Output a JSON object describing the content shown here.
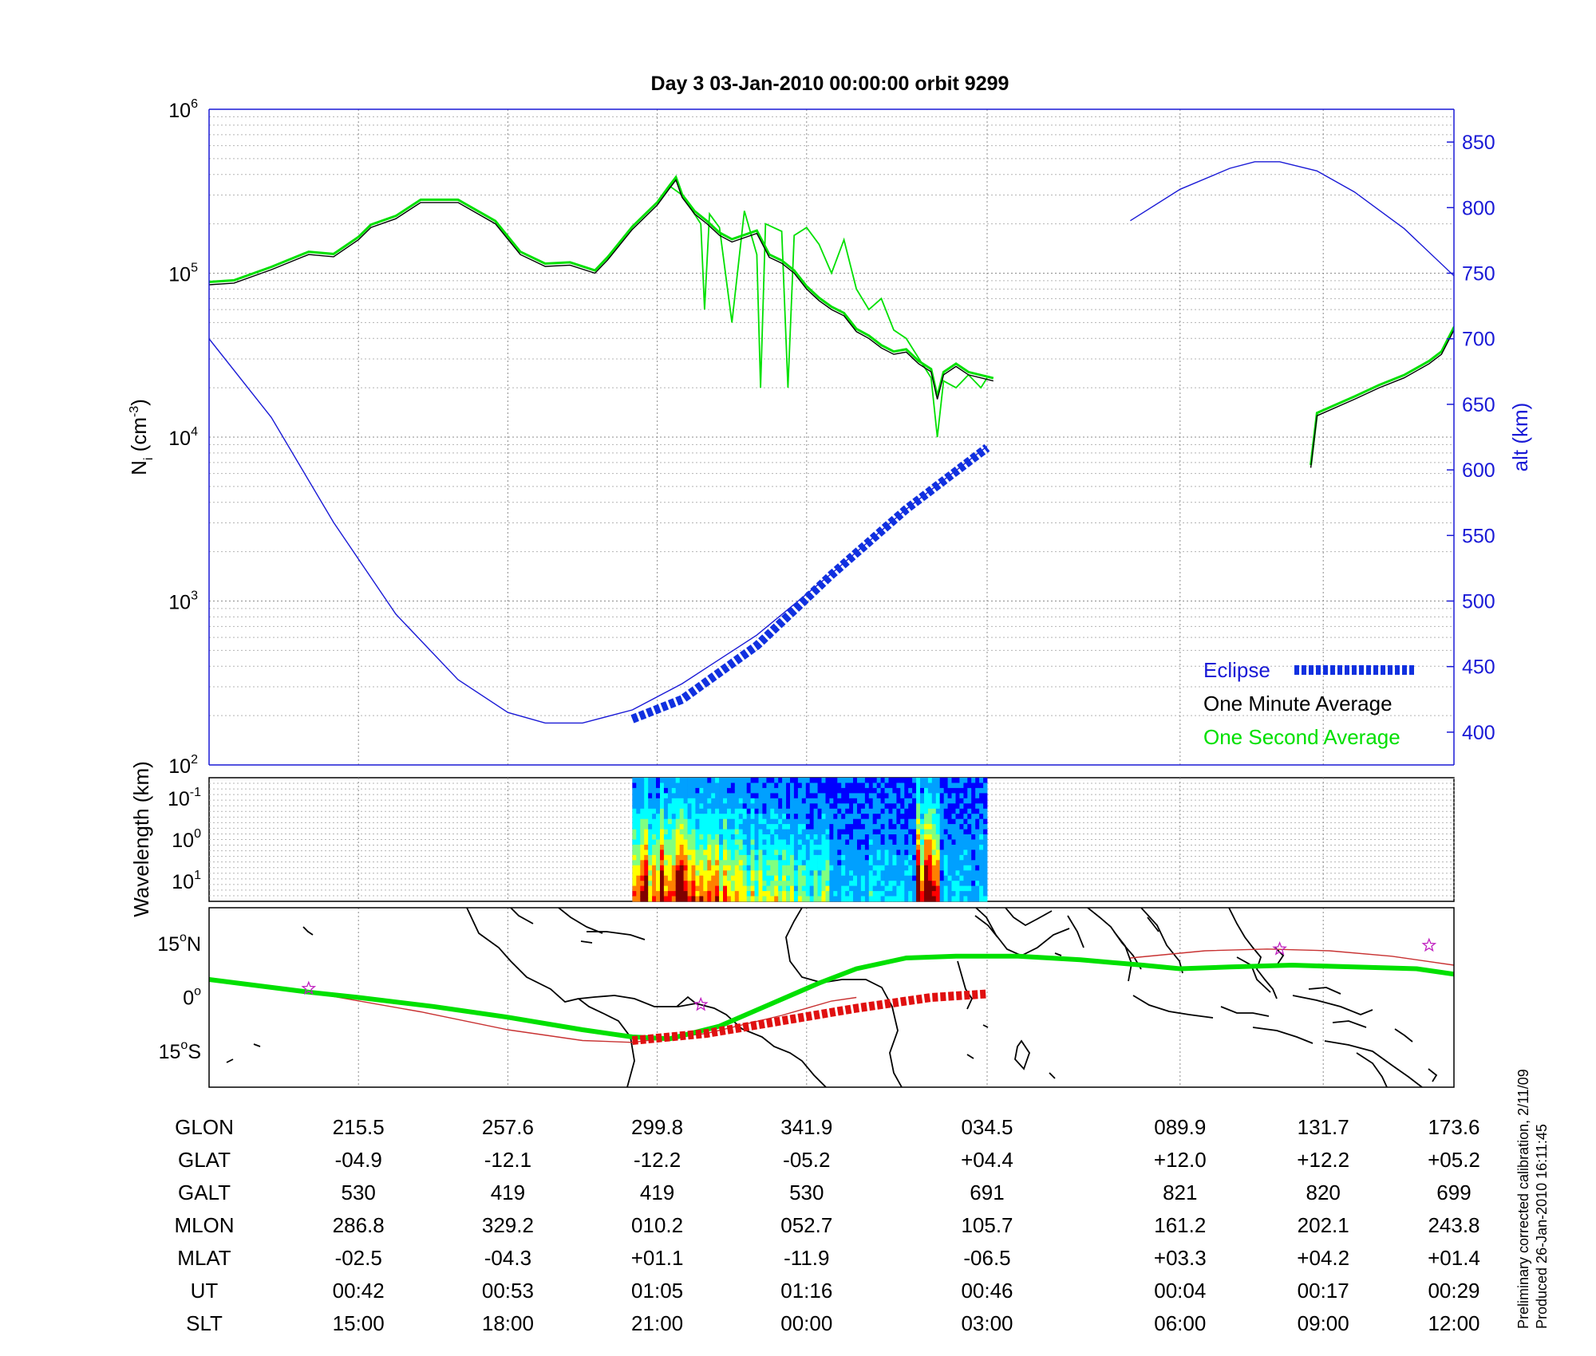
{
  "title": "Day 3  03-Jan-2010 00:00:00   orbit 9299",
  "colors": {
    "one_second": "#00e000",
    "one_minute": "#000000",
    "altitude": "#1a1ad6",
    "eclipse_top": "#1030e0",
    "eclipse_map": "#e01010",
    "orbit_track": "#c83232",
    "star": "#c020c0"
  },
  "chart_data": [
    {
      "type": "line",
      "panel": "ion-density",
      "ylabel_base": "N",
      "ylabel_sub": "i",
      "ylabel_unit": " (cm",
      "ylabel_exp": "-3",
      "ylabel_close": ")",
      "y_scale": "log",
      "ylim": [
        100,
        1000000
      ],
      "y_ticks": [
        {
          "base": "10",
          "exp": "2",
          "value": 100
        },
        {
          "base": "10",
          "exp": "3",
          "value": 1000
        },
        {
          "base": "10",
          "exp": "4",
          "value": 10000
        },
        {
          "base": "10",
          "exp": "5",
          "value": 100000
        },
        {
          "base": "10",
          "exp": "6",
          "value": 1000000
        }
      ],
      "y2label": "alt (km)",
      "y2lim": [
        375,
        875
      ],
      "y2_ticks": [
        "400",
        "450",
        "500",
        "550",
        "600",
        "650",
        "700",
        "750",
        "800",
        "850"
      ],
      "x_positions": [
        0.12,
        0.24,
        0.36,
        0.48,
        0.625,
        0.78,
        0.895,
        1.0
      ],
      "grid": true,
      "legend": {
        "placement": "bottom-right",
        "entries": [
          {
            "label": "Eclipse",
            "style": "eclipse"
          },
          {
            "label": "One Minute Average",
            "style": "minute"
          },
          {
            "label": "One Second Average",
            "style": "second"
          }
        ]
      },
      "series": [
        {
          "name": "One Minute Average",
          "unit": "cm^-3",
          "segments": [
            [
              [
                0.0,
                85000
              ],
              [
                0.02,
                87000
              ],
              [
                0.05,
                105000
              ],
              [
                0.08,
                130000
              ],
              [
                0.1,
                126000
              ],
              [
                0.12,
                160000
              ],
              [
                0.13,
                190000
              ],
              [
                0.15,
                215000
              ],
              [
                0.17,
                270000
              ],
              [
                0.2,
                270000
              ],
              [
                0.23,
                200000
              ],
              [
                0.25,
                130000
              ],
              [
                0.27,
                110000
              ],
              [
                0.29,
                112000
              ],
              [
                0.31,
                100000
              ],
              [
                0.32,
                120000
              ],
              [
                0.34,
                185000
              ],
              [
                0.36,
                260000
              ],
              [
                0.37,
                330000
              ],
              [
                0.375,
                370000
              ],
              [
                0.38,
                290000
              ],
              [
                0.39,
                230000
              ],
              [
                0.4,
                200000
              ],
              [
                0.41,
                170000
              ],
              [
                0.42,
                155000
              ],
              [
                0.44,
                175000
              ],
              [
                0.45,
                125000
              ],
              [
                0.46,
                115000
              ],
              [
                0.47,
                100000
              ],
              [
                0.48,
                80000
              ],
              [
                0.49,
                68000
              ],
              [
                0.5,
                60000
              ],
              [
                0.51,
                55000
              ],
              [
                0.52,
                44000
              ],
              [
                0.53,
                40000
              ],
              [
                0.54,
                35000
              ],
              [
                0.55,
                32000
              ],
              [
                0.56,
                33000
              ],
              [
                0.57,
                28000
              ],
              [
                0.58,
                25000
              ],
              [
                0.585,
                17000
              ],
              [
                0.59,
                24000
              ],
              [
                0.6,
                27000
              ],
              [
                0.61,
                24000
              ],
              [
                0.63,
                22000
              ]
            ],
            [
              [
                0.885,
                6500
              ],
              [
                0.89,
                13500
              ],
              [
                0.92,
                17000
              ],
              [
                0.94,
                20000
              ],
              [
                0.96,
                23000
              ],
              [
                0.98,
                28000
              ],
              [
                0.99,
                32000
              ],
              [
                1.0,
                45000
              ],
              [
                1.02,
                60000
              ],
              [
                1.04,
                68000
              ],
              [
                1.05,
                75000
              ]
            ]
          ]
        },
        {
          "name": "One Second Average",
          "unit": "cm^-3",
          "segments": [
            [
              [
                0.37,
                340000
              ],
              [
                0.38,
                300000
              ],
              [
                0.395,
                200000
              ],
              [
                0.398,
                60000
              ],
              [
                0.402,
                230000
              ],
              [
                0.41,
                190000
              ],
              [
                0.42,
                50000
              ],
              [
                0.43,
                240000
              ],
              [
                0.44,
                130000
              ],
              [
                0.443,
                20000
              ],
              [
                0.447,
                200000
              ],
              [
                0.46,
                180000
              ],
              [
                0.465,
                20000
              ],
              [
                0.47,
                170000
              ],
              [
                0.48,
                190000
              ],
              [
                0.49,
                150000
              ],
              [
                0.5,
                100000
              ],
              [
                0.51,
                160000
              ],
              [
                0.52,
                80000
              ],
              [
                0.53,
                60000
              ],
              [
                0.54,
                70000
              ],
              [
                0.55,
                45000
              ],
              [
                0.56,
                40000
              ],
              [
                0.58,
                23000
              ],
              [
                0.585,
                10000
              ],
              [
                0.59,
                22000
              ],
              [
                0.6,
                20000
              ],
              [
                0.61,
                24000
              ],
              [
                0.62,
                20000
              ],
              [
                0.625,
                23000
              ]
            ]
          ]
        },
        {
          "name": "Altitude",
          "unit": "km",
          "segments": [
            [
              [
                0.0,
                700
              ],
              [
                0.05,
                640
              ],
              [
                0.1,
                560
              ],
              [
                0.15,
                490
              ],
              [
                0.2,
                440
              ],
              [
                0.24,
                415
              ],
              [
                0.27,
                407
              ],
              [
                0.3,
                407
              ],
              [
                0.34,
                417
              ],
              [
                0.38,
                437
              ],
              [
                0.44,
                474
              ],
              [
                0.5,
                521
              ],
              [
                0.56,
                570
              ],
              [
                0.625,
                618
              ]
            ],
            [
              [
                0.74,
                790
              ],
              [
                0.78,
                814
              ],
              [
                0.82,
                830
              ],
              [
                0.84,
                835
              ],
              [
                0.86,
                835
              ],
              [
                0.89,
                828
              ],
              [
                0.92,
                812
              ],
              [
                0.96,
                784
              ],
              [
                1.0,
                748
              ],
              [
                1.05,
                700
              ]
            ]
          ]
        },
        {
          "name": "Eclipse",
          "unit": "km",
          "segments": [
            [
              [
                0.34,
                410
              ],
              [
                0.38,
                425
              ],
              [
                0.44,
                466
              ],
              [
                0.5,
                520
              ],
              [
                0.56,
                570
              ],
              [
                0.625,
                617
              ]
            ]
          ]
        }
      ]
    },
    {
      "type": "heatmap",
      "panel": "wavelength-spectrogram",
      "ylabel": "Wavelength (km)",
      "y_scale": "log",
      "y_ticks": [
        {
          "base": "10",
          "exp": "-1"
        },
        {
          "base": "10",
          "exp": "0"
        },
        {
          "base": "10",
          "exp": "1"
        }
      ],
      "data_range": [
        0.34,
        0.625
      ],
      "colormap": [
        "#000080",
        "#0000ff",
        "#00a0ff",
        "#00ffff",
        "#80ff80",
        "#ffff00",
        "#ff8000",
        "#ff0000",
        "#800000"
      ]
    },
    {
      "type": "line",
      "panel": "ground-track-map",
      "y_ticks": [
        {
          "deg": "15",
          "hem": "N",
          "value": 15
        },
        {
          "deg": "0",
          "hem": "",
          "value": 0
        },
        {
          "deg": "15",
          "hem": "S",
          "value": -15
        }
      ],
      "ylim": [
        -25,
        25
      ],
      "series": [
        {
          "name": "Magnetic Equator",
          "segments": [
            [
              [
                0.0,
                5.5
              ],
              [
                0.08,
                1.5
              ],
              [
                0.17,
                -4
              ],
              [
                0.24,
                -9
              ],
              [
                0.3,
                -12
              ],
              [
                0.34,
                -12.5
              ],
              [
                0.4,
                -10
              ],
              [
                0.46,
                -5
              ],
              [
                0.5,
                -1
              ],
              [
                0.52,
                0
              ]
            ],
            [
              [
                0.74,
                11
              ],
              [
                0.8,
                13
              ],
              [
                0.85,
                13.5
              ],
              [
                0.9,
                13
              ],
              [
                0.95,
                11.5
              ],
              [
                1.0,
                9
              ],
              [
                1.05,
                6
              ]
            ]
          ]
        },
        {
          "name": "Satellite Track",
          "segments": [
            [
              [
                0.0,
                5
              ],
              [
                0.08,
                1.5
              ],
              [
                0.12,
                0
              ],
              [
                0.18,
                -2.5
              ],
              [
                0.24,
                -5.5
              ],
              [
                0.3,
                -9
              ],
              [
                0.34,
                -11
              ],
              [
                0.37,
                -11.5
              ],
              [
                0.41,
                -8
              ],
              [
                0.45,
                -2
              ],
              [
                0.49,
                4
              ],
              [
                0.52,
                8
              ],
              [
                0.56,
                11
              ],
              [
                0.6,
                11.5
              ],
              [
                0.65,
                11.5
              ],
              [
                0.7,
                10.5
              ],
              [
                0.75,
                9
              ],
              [
                0.78,
                8
              ],
              [
                0.82,
                8.5
              ],
              [
                0.87,
                9
              ],
              [
                0.92,
                8.5
              ],
              [
                0.97,
                8
              ],
              [
                1.0,
                6.5
              ],
              [
                1.05,
                4.5
              ]
            ]
          ]
        },
        {
          "name": "Eclipse",
          "segments": [
            [
              [
                0.34,
                -12
              ],
              [
                0.4,
                -10
              ],
              [
                0.46,
                -6.5
              ],
              [
                0.52,
                -3
              ],
              [
                0.58,
                0
              ],
              [
                0.625,
                1
              ]
            ]
          ]
        }
      ],
      "stars": [
        {
          "x": 0.08,
          "y": 2.5
        },
        {
          "x": 0.395,
          "y": -2
        },
        {
          "x": 0.86,
          "y": 13.5
        },
        {
          "x": 0.98,
          "y": 14.5
        },
        {
          "x": 1.04,
          "y": 10
        }
      ]
    }
  ],
  "table": {
    "row_labels": [
      "GLON",
      "GLAT",
      "GALT",
      "MLON",
      "MLAT",
      "UT",
      "SLT"
    ],
    "columns": [
      [
        "215.5",
        "-04.9",
        "530",
        "286.8",
        "-02.5",
        "00:42",
        "15:00"
      ],
      [
        "257.6",
        "-12.1",
        "419",
        "329.2",
        "-04.3",
        "00:53",
        "18:00"
      ],
      [
        "299.8",
        "-12.2",
        "419",
        "010.2",
        "+01.1",
        "01:05",
        "21:00"
      ],
      [
        "341.9",
        "-05.2",
        "530",
        "052.7",
        "-11.9",
        "01:16",
        "00:00"
      ],
      [
        "034.5",
        "+04.4",
        "691",
        "105.7",
        "-06.5",
        "00:46",
        "03:00"
      ],
      [
        "089.9",
        "+12.0",
        "821",
        "161.2",
        "+03.3",
        "00:04",
        "06:00"
      ],
      [
        "131.7",
        "+12.2",
        "820",
        "202.1",
        "+04.2",
        "00:17",
        "09:00"
      ],
      [
        "173.6",
        "+05.2",
        "699",
        "243.8",
        "+01.4",
        "00:29",
        "12:00"
      ]
    ]
  },
  "footnote": {
    "line1": "Preliminary corrected calibration, 2/11/09",
    "line2": "Produced 26-Jan-2010 16:11:45"
  }
}
